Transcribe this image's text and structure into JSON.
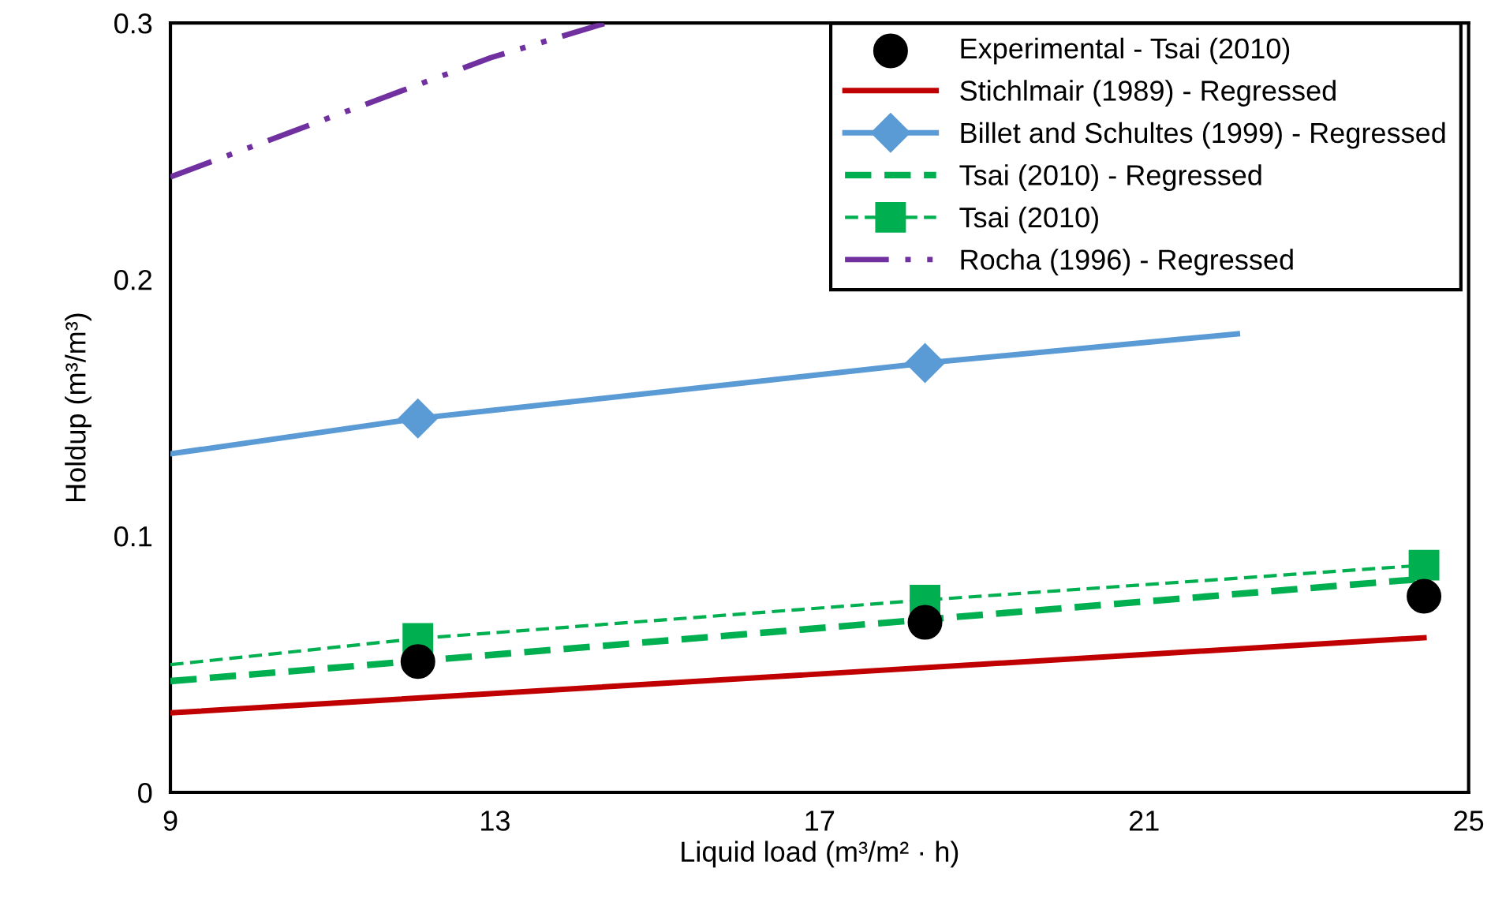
{
  "chart_data": {
    "type": "line",
    "xlabel": "Liquid load (m³/m² · h)",
    "ylabel": "Holdup (m³/m³)",
    "xlim": [
      9,
      25
    ],
    "xticks": [
      9,
      13,
      17,
      21,
      25
    ],
    "ylim": [
      0,
      0.3
    ],
    "yticks": [
      0,
      {
        "value": 0.1,
        "label": "0.1"
      },
      {
        "value": 0.2,
        "label": "0.2"
      },
      {
        "value": 0.3,
        "label": "0.3"
      }
    ],
    "grid": false,
    "legend": "top right",
    "series": [
      {
        "name": "Experimental - Tsai (2010)",
        "type": "scatter",
        "color": "#000000",
        "marker": "circle",
        "x": [
          12.05,
          18.3,
          24.45
        ],
        "values": [
          0.051,
          0.0663,
          0.0765
        ]
      },
      {
        "name": "Stichlmair (1989) - Regressed",
        "color": "#c00000",
        "line_style": "solid",
        "x": [
          9,
          24.45
        ],
        "values": [
          0.031,
          0.0603
        ]
      },
      {
        "name": "Billet and Schultes (1999) - Regressed",
        "color": "#5b9bd5",
        "line_style": "solid",
        "marker": "diamond",
        "x": [
          12.05,
          18.3
        ],
        "values": [
          0.1458,
          0.1674
        ]
      },
      {
        "color": "#5b9bd5",
        "line_style": "solid",
        "x": [
          9,
          12.05
        ],
        "values": [
          0.132,
          0.1458
        ]
      },
      {
        "color": "#5b9bd5",
        "line_style": "solid",
        "x": [
          18.3,
          22.15
        ],
        "values": [
          0.1674,
          0.1788
        ]
      },
      {
        "name": "Tsai (2010) - Regressed",
        "color": "#00b050",
        "line_style": "dashed",
        "x": [
          9,
          24.45
        ],
        "values": [
          0.0434,
          0.0833
        ]
      },
      {
        "name": "Tsai (2010)",
        "color": "#00b050",
        "line_style": "dashed",
        "marker": "square",
        "x": [
          12.05,
          18.3,
          24.45
        ],
        "values": [
          0.06,
          0.075,
          0.0886
        ]
      },
      {
        "color": "#00b050",
        "line_style": "dashed",
        "marker": "none",
        "x": [
          9,
          12.05
        ],
        "values": [
          0.0498,
          0.06
        ]
      },
      {
        "name": "Rocha (1996) - Regressed",
        "color": "#7030a0",
        "line_style": "dashdotdot",
        "x": [
          9,
          12.95,
          14.37
        ],
        "values": [
          0.24,
          0.2865,
          0.3
        ]
      }
    ]
  }
}
